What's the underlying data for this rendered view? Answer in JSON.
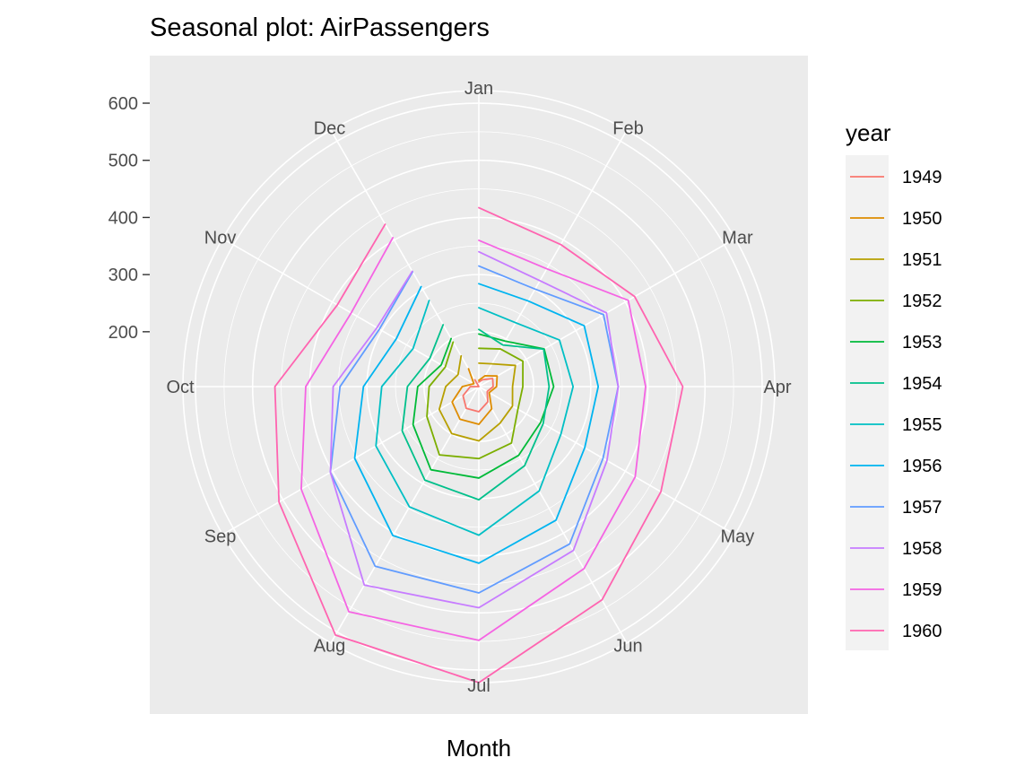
{
  "chart_data": {
    "type": "line",
    "coordinates": "polar",
    "title": "Seasonal plot: AirPassengers",
    "xlabel": "Month",
    "ylabel": "",
    "categories": [
      "Jan",
      "Feb",
      "Mar",
      "Apr",
      "May",
      "Jun",
      "Jul",
      "Aug",
      "Sep",
      "Oct",
      "Nov",
      "Dec"
    ],
    "y_ticks": [
      200,
      300,
      400,
      500,
      600
    ],
    "ylim": [
      104,
      622
    ],
    "legend": {
      "title": "year",
      "placement": "right"
    },
    "grid": true,
    "series": [
      {
        "name": "1949",
        "color": "#F8766D",
        "values": [
          112,
          118,
          132,
          129,
          121,
          135,
          148,
          148,
          136,
          119,
          104,
          118
        ]
      },
      {
        "name": "1950",
        "color": "#DE8C00",
        "values": [
          115,
          126,
          141,
          135,
          125,
          149,
          170,
          170,
          158,
          133,
          114,
          140
        ]
      },
      {
        "name": "1951",
        "color": "#B79F00",
        "values": [
          145,
          150,
          178,
          163,
          172,
          178,
          199,
          199,
          184,
          162,
          146,
          166
        ]
      },
      {
        "name": "1952",
        "color": "#7CAE00",
        "values": [
          171,
          180,
          193,
          181,
          183,
          218,
          230,
          242,
          209,
          191,
          172,
          194
        ]
      },
      {
        "name": "1953",
        "color": "#00BA38",
        "values": [
          196,
          196,
          236,
          235,
          229,
          243,
          264,
          272,
          237,
          211,
          180,
          201
        ]
      },
      {
        "name": "1954",
        "color": "#00C08B",
        "values": [
          204,
          188,
          235,
          227,
          234,
          264,
          302,
          293,
          259,
          229,
          203,
          229
        ]
      },
      {
        "name": "1955",
        "color": "#00BFC4",
        "values": [
          242,
          233,
          267,
          269,
          270,
          315,
          364,
          347,
          312,
          274,
          237,
          278
        ]
      },
      {
        "name": "1956",
        "color": "#00B4F0",
        "values": [
          284,
          277,
          317,
          313,
          318,
          374,
          413,
          405,
          355,
          306,
          271,
          306
        ]
      },
      {
        "name": "1957",
        "color": "#619CFF",
        "values": [
          315,
          301,
          356,
          348,
          355,
          422,
          465,
          467,
          404,
          347,
          305,
          336
        ]
      },
      {
        "name": "1958",
        "color": "#C77CFF",
        "values": [
          340,
          318,
          362,
          348,
          363,
          435,
          491,
          505,
          404,
          359,
          310,
          337
        ]
      },
      {
        "name": "1959",
        "color": "#F564E3",
        "values": [
          360,
          342,
          406,
          396,
          420,
          472,
          548,
          559,
          463,
          407,
          362,
          405
        ]
      },
      {
        "name": "1960",
        "color": "#FF64B0",
        "values": [
          417,
          391,
          419,
          461,
          472,
          535,
          622,
          606,
          508,
          461,
          390,
          432
        ]
      }
    ]
  }
}
